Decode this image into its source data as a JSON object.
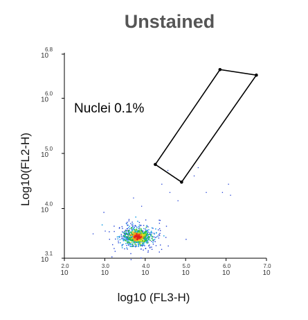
{
  "chart_data": {
    "type": "scatter",
    "title": "Unstained",
    "xlabel": "log10 (FL3-H)",
    "ylabel": "Log10(FL2-H)",
    "xlim": [
      2.0,
      7.0
    ],
    "ylim": [
      3.1,
      6.8
    ],
    "x_ticks": [
      {
        "base": "10",
        "exp": "2.0",
        "value": 2.0
      },
      {
        "base": "10",
        "exp": "3.0",
        "value": 3.0
      },
      {
        "base": "10",
        "exp": "4.0",
        "value": 4.0
      },
      {
        "base": "10",
        "exp": "5.0",
        "value": 5.0
      },
      {
        "base": "10",
        "exp": "6.0",
        "value": 6.0
      },
      {
        "base": "10",
        "exp": "7.0",
        "value": 7.0
      }
    ],
    "y_ticks": [
      {
        "base": "10",
        "exp": "3.1",
        "value": 3.1
      },
      {
        "base": "10",
        "exp": "4.0",
        "value": 4.0
      },
      {
        "base": "10",
        "exp": "5.0",
        "value": 5.0
      },
      {
        "base": "10",
        "exp": "6.0",
        "value": 6.0
      },
      {
        "base": "10",
        "exp": "6.8",
        "value": 6.8
      }
    ],
    "gate": {
      "label": "Nuclei 0.1%",
      "vertices": [
        [
          4.25,
          4.8
        ],
        [
          5.85,
          6.52
        ],
        [
          6.75,
          6.42
        ],
        [
          4.9,
          4.48
        ]
      ]
    },
    "cluster": {
      "x_center": 3.8,
      "y_center": 3.5,
      "colormap": [
        "#1f3fd6",
        "#2aa7e8",
        "#26c23b",
        "#e8e322",
        "#f08a1c",
        "#e0201d"
      ]
    },
    "outliers": [
      [
        4.6,
        4.3
      ],
      [
        4.8,
        4.15
      ],
      [
        5.2,
        4.6
      ],
      [
        5.5,
        4.3
      ],
      [
        5.9,
        4.3
      ],
      [
        6.1,
        4.25
      ],
      [
        4.4,
        4.45
      ],
      [
        3.7,
        4.2
      ],
      [
        3.9,
        4.05
      ],
      [
        6.05,
        4.45
      ],
      [
        5.3,
        4.75
      ],
      [
        4.55,
        4.7
      ],
      [
        3.0,
        3.6
      ],
      [
        2.7,
        3.55
      ]
    ]
  }
}
